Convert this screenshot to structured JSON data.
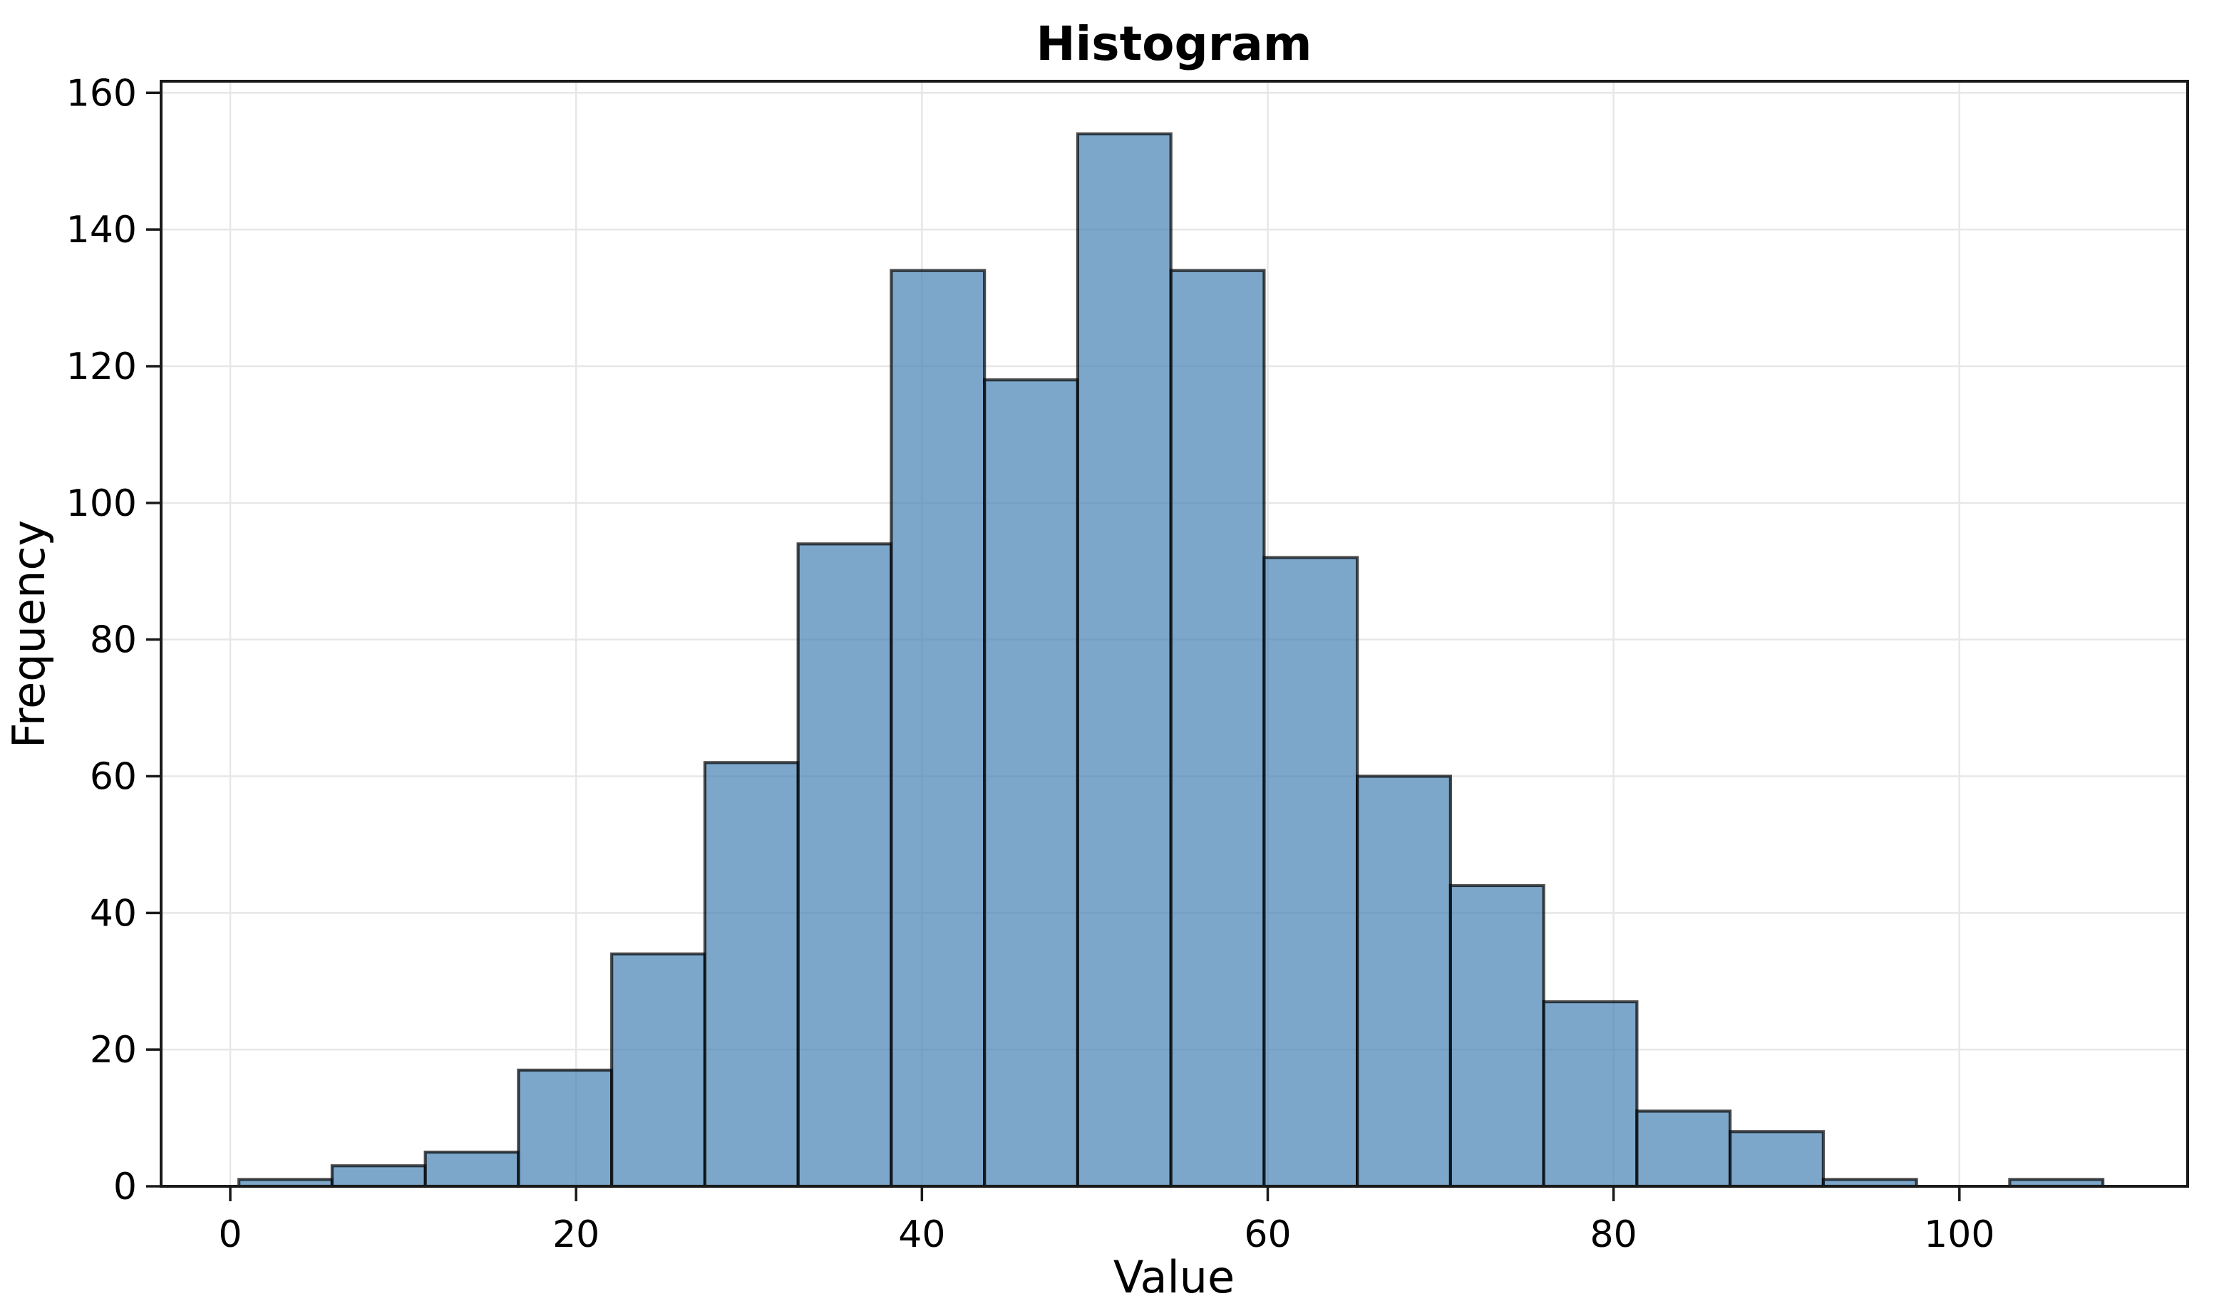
{
  "chart_data": {
    "type": "bar",
    "subtype": "histogram",
    "title": "Histogram",
    "xlabel": "Value",
    "ylabel": "Frequency",
    "bin_start": 0.5,
    "bin_width": 5.39,
    "counts": [
      1,
      3,
      5,
      17,
      34,
      62,
      94,
      134,
      118,
      154,
      134,
      92,
      60,
      44,
      27,
      11,
      8,
      1,
      0,
      1
    ],
    "total_samples": 1000,
    "x_ticks": [
      0,
      20,
      40,
      60,
      80,
      100
    ],
    "y_ticks": [
      0,
      20,
      40,
      60,
      80,
      100,
      120,
      140,
      160
    ],
    "xlim": [
      -4.0,
      113.2
    ],
    "ylim": [
      0,
      161.7
    ],
    "grid": true,
    "legend_position": "none",
    "colors": {
      "bar_fill": "#4682B4",
      "bar_fill_opacity": 0.7,
      "bar_edge": "rgba(0,0,0,0.7)",
      "gridline": "#e7e7e7",
      "spine": "#1a1a1a",
      "tick": "#1a1a1a",
      "text": "#000000",
      "background": "#ffffff"
    }
  }
}
